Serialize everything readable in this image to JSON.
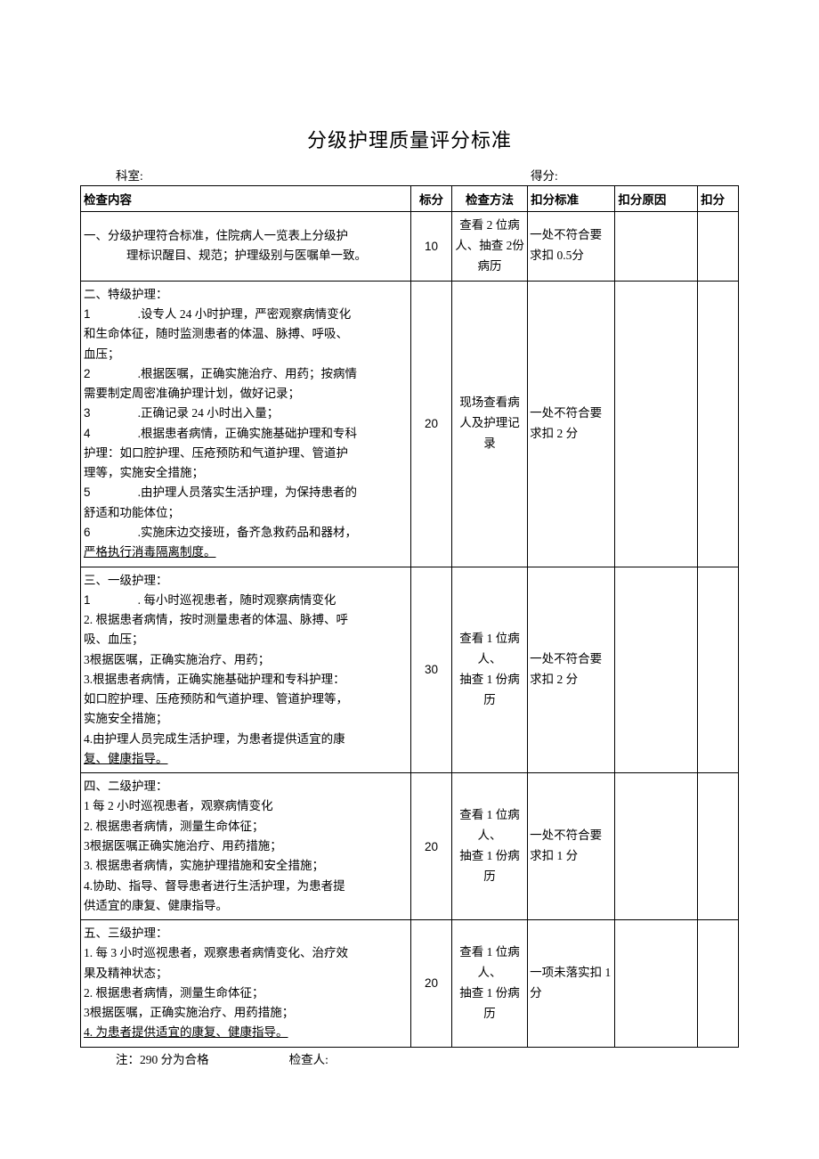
{
  "title": "分级护理质量评分标准",
  "header": {
    "department_label": "科室:",
    "score_label": "得分:"
  },
  "columns": {
    "content": "检查内容",
    "score": "标分",
    "method": "检查方法",
    "standard": "扣分标准",
    "reason": "扣分原因",
    "deduct": "扣分"
  },
  "rows": [
    {
      "content_lines": [
        "一、分级护理符合标准，住院病人一览表上分级护",
        "理标识醒目、规范；护理级别与医嘱单一致。"
      ],
      "content_indent_second": true,
      "score": "10",
      "method": "查看 2 位病人、抽查 2份病历",
      "standard": "一处不符合要求扣 0.5分"
    },
    {
      "content_lines": [
        "二、特级护理：",
        "1          .设专人 24 小时护理，严密观察病情变化",
        "和生命体征，随时监测患者的体温、脉搏、呼吸、",
        "血压；",
        "2          .根据医嘱，正确实施治疗、用药；按病情",
        "需要制定周密准确护理计划，做好记录；",
        "3          .正确记录 24 小时出入量；",
        "4          .根据患者病情，正确实施基础护理和专科",
        "护理：如口腔护理、压疮预防和气道护理、管道护",
        "理等，实施安全措施；",
        "5          .由护理人员落实生活护理，为保持患者的",
        "舒适和功能体位；",
        "6          .实施床边交接班，备齐急救药品和器材，",
        "严格执行消毒隔离制度。"
      ],
      "score": "20",
      "method": "现场查看病人及护理记录",
      "standard": "一处不符合要求扣 2 分"
    },
    {
      "content_lines": [
        "三、一级护理：",
        "1        . 每小时巡视患者，随时观察病情变化",
        "2. 根据患者病情，按时测量患者的体温、脉搏、呼",
        "吸、血压；",
        "3根据医嘱，正确实施治疗、用药；",
        "3.根据患者病情，正确实施基础护理和专科护理：",
        "如口腔护理、压疮预防和气道护理、管道护理等，",
        "实施安全措施；",
        "4.由护理人员完成生活护理，为患者提供适宜的康",
        "复、健康指导。"
      ],
      "score": "30",
      "method": "查看 1 位病人、\n抽查 1 份病历",
      "standard": "一处不符合要求扣 2 分"
    },
    {
      "content_lines": [
        "四、二级护理：",
        "1 每 2 小时巡视患者，观察病情变化",
        "2. 根据患者病情，测量生命体征；",
        "3根据医嘱正确实施治疗、用药措施；",
        "3. 根据患者病情，实施护理措施和安全措施；",
        "4.协助、指导、督导患者进行生活护理，为患者提",
        "供适宜的康复、健康指导。"
      ],
      "score": "20",
      "method": "查看 1 位病人、\n抽查 1 份病历",
      "standard": "一处不符合要求扣 1 分"
    },
    {
      "content_lines": [
        "五、三级护理：",
        "1. 每 3 小时巡视患者，观察患者病情变化、治疗效",
        "果及精神状态；",
        "2. 根据患者病情，测量生命体征；",
        "3根据医嘱，正确实施治疗、用药措施；",
        "4. 为患者提供适宜的康复、健康指导。"
      ],
      "score": "20",
      "method": "查看 1 位病人、\n抽查 1 份病历",
      "standard": "一项未落实扣 1 分"
    }
  ],
  "footer": {
    "note": "注：290 分为合格",
    "inspector": "检查人:"
  },
  "style": {
    "background": "#ffffff",
    "border_color": "#000000",
    "title_fontsize": 22,
    "body_fontsize": 13.5
  }
}
